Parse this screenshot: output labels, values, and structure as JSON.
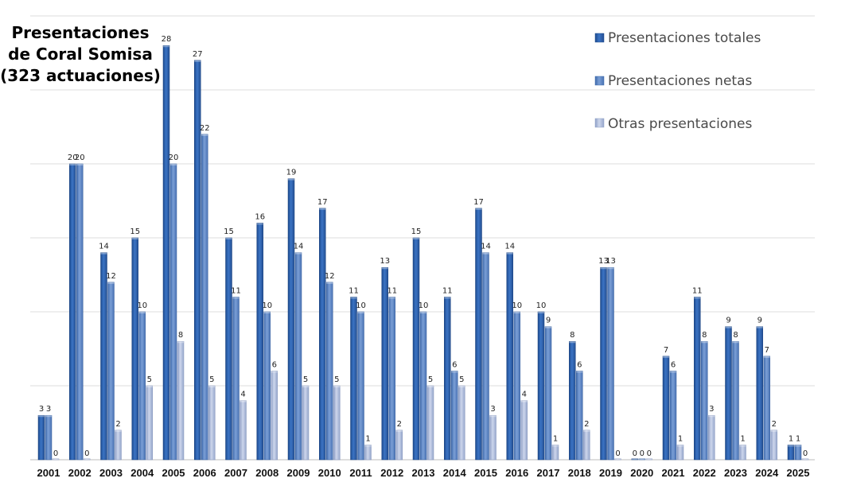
{
  "chart_data": {
    "type": "bar",
    "title_lines": [
      "Presentaciones",
      "de Coral Somisa",
      "(323 actuaciones)"
    ],
    "categories": [
      "2001",
      "2002",
      "2003",
      "2004",
      "2005",
      "2006",
      "2007",
      "2008",
      "2009",
      "2010",
      "2011",
      "2012",
      "2013",
      "2014",
      "2015",
      "2016",
      "2017",
      "2018",
      "2019",
      "2020",
      "2021",
      "2022",
      "2023",
      "2024",
      "2025"
    ],
    "series": [
      {
        "name": "Presentaciones totales",
        "color": "#2e62b0",
        "values": [
          3,
          20,
          14,
          15,
          28,
          27,
          15,
          16,
          19,
          17,
          11,
          13,
          15,
          11,
          17,
          14,
          10,
          8,
          13,
          0,
          7,
          11,
          9,
          9,
          1
        ]
      },
      {
        "name": "Presentaciones netas",
        "color": "#5b86c6",
        "values": [
          3,
          20,
          12,
          10,
          20,
          22,
          11,
          10,
          14,
          12,
          10,
          11,
          10,
          6,
          14,
          10,
          9,
          6,
          13,
          0,
          6,
          8,
          8,
          7,
          1
        ]
      },
      {
        "name": "Otras presentaciones",
        "color": "#a9b8d8",
        "values": [
          0,
          0,
          2,
          5,
          8,
          5,
          4,
          6,
          5,
          5,
          1,
          2,
          5,
          5,
          3,
          4,
          1,
          2,
          0,
          0,
          1,
          3,
          1,
          2,
          0
        ]
      }
    ],
    "ylim": [
      0,
      30
    ],
    "gridlines": true,
    "legend_position": "top-right",
    "xlabel": "",
    "ylabel": ""
  }
}
